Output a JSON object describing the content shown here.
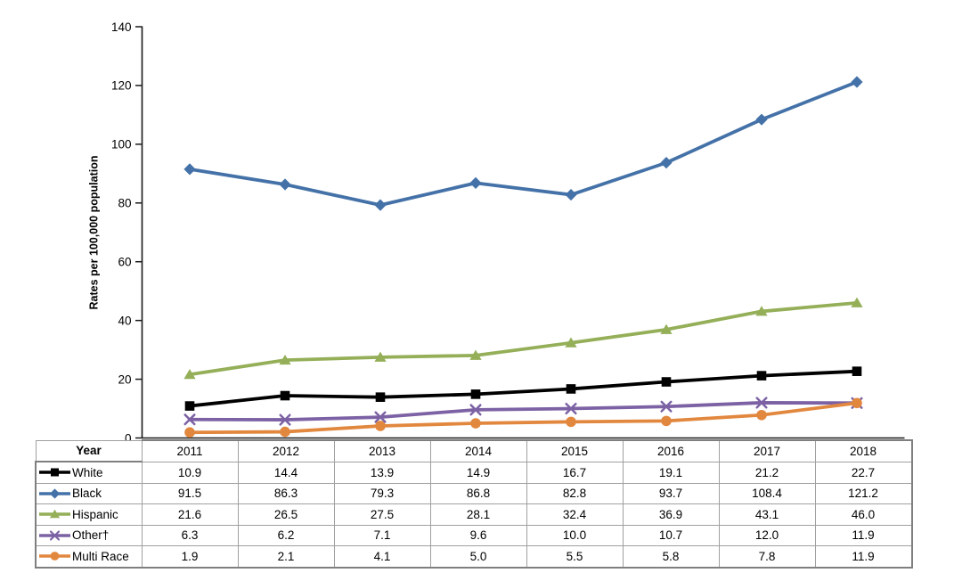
{
  "chart_data": {
    "type": "line",
    "title": "",
    "ylabel": "Rates per 100,000 population",
    "xlabel_header": "Year",
    "categories": [
      "2011",
      "2012",
      "2013",
      "2014",
      "2015",
      "2016",
      "2017",
      "2018"
    ],
    "ylim": [
      0,
      140
    ],
    "yticks": [
      0,
      20,
      40,
      60,
      80,
      100,
      120,
      140
    ],
    "grid": false,
    "legend_position": "table-left",
    "axis_color": "#1a1a1a",
    "table_border_inner": "#a0a0a0",
    "table_border_outer": "#7f7f7f",
    "series": [
      {
        "name": "White",
        "marker": "square",
        "color": "#000000",
        "values": [
          10.9,
          14.4,
          13.9,
          14.9,
          16.7,
          19.1,
          21.2,
          22.7
        ]
      },
      {
        "name": "Black",
        "marker": "diamond",
        "color": "#4472A8",
        "values": [
          91.5,
          86.3,
          79.3,
          86.8,
          82.8,
          93.7,
          108.4,
          121.2
        ]
      },
      {
        "name": "Hispanic",
        "marker": "triangle",
        "color": "#94AF58",
        "values": [
          21.6,
          26.5,
          27.5,
          28.1,
          32.4,
          36.9,
          43.1,
          46.0
        ]
      },
      {
        "name": "Other†",
        "marker": "x",
        "color": "#7C62A4",
        "values": [
          6.3,
          6.2,
          7.1,
          9.6,
          10.0,
          10.7,
          12.0,
          11.9
        ]
      },
      {
        "name": "Multi Race",
        "marker": "circle",
        "color": "#E2873E",
        "values": [
          1.9,
          2.1,
          4.1,
          5.0,
          5.5,
          5.8,
          7.8,
          11.9
        ]
      }
    ]
  }
}
